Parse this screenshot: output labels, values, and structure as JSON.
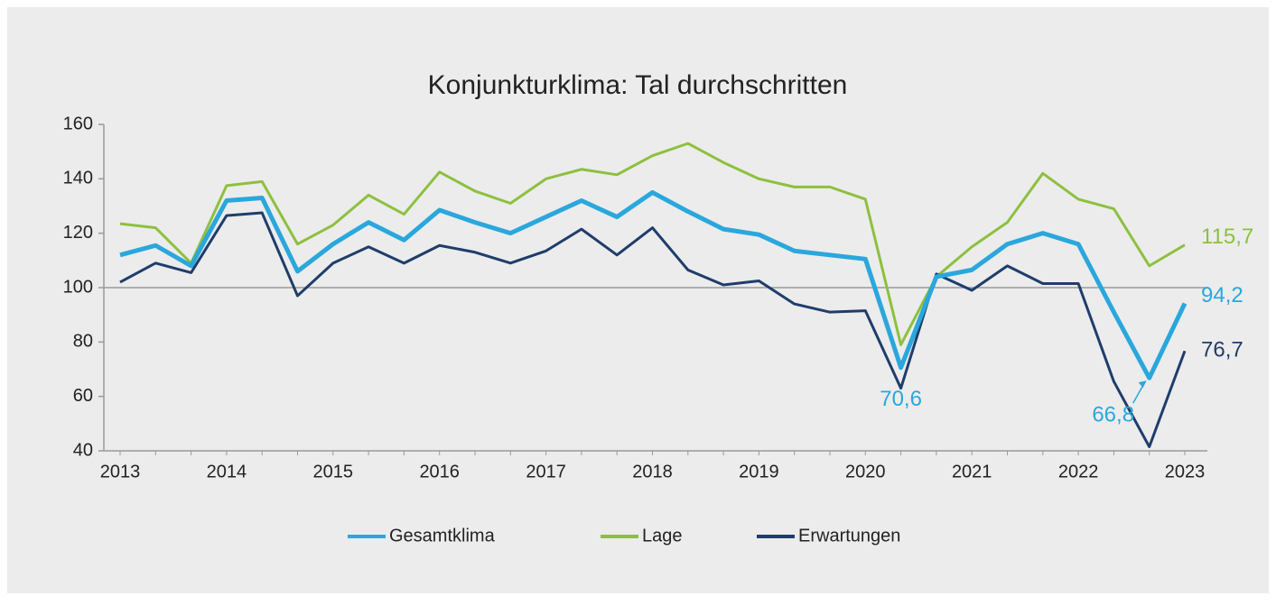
{
  "chart_data": {
    "type": "line",
    "title": "Konjunkturklima: Tal durchschritten",
    "categories": [
      "2013",
      null,
      null,
      "2014",
      null,
      null,
      "2015",
      null,
      null,
      "2016",
      null,
      null,
      "2017",
      null,
      null,
      "2018",
      null,
      null,
      "2019",
      null,
      null,
      "2020",
      null,
      null,
      "2021",
      null,
      null,
      "2022",
      null,
      null,
      "2023"
    ],
    "series": [
      {
        "name": "Gesamtklima",
        "color": "#2aa7dc",
        "values": [
          112,
          115.5,
          108,
          132,
          133,
          106,
          116,
          124,
          117.5,
          128.5,
          124,
          120,
          126,
          132,
          126,
          135,
          128,
          121.5,
          119.5,
          113.5,
          112,
          110.5,
          70.6,
          104,
          106.5,
          116,
          120,
          116,
          91,
          66.8,
          94.2
        ],
        "value_labels": [
          null,
          null,
          null,
          null,
          null,
          null,
          null,
          null,
          null,
          null,
          null,
          null,
          null,
          null,
          null,
          null,
          null,
          null,
          null,
          null,
          null,
          null,
          "70,6",
          null,
          null,
          null,
          null,
          null,
          null,
          "66,8",
          "94,2"
        ]
      },
      {
        "name": "Lage",
        "color": "#8dc03f",
        "values": [
          123.5,
          122,
          109,
          137.5,
          139,
          116,
          123,
          134,
          127,
          142.5,
          135.5,
          131,
          140,
          143.5,
          141.5,
          148.5,
          153,
          146,
          140,
          137,
          137,
          132.5,
          79,
          104,
          115,
          124,
          142,
          132.5,
          129,
          108,
          115.7
        ],
        "value_labels": [
          null,
          null,
          null,
          null,
          null,
          null,
          null,
          null,
          null,
          null,
          null,
          null,
          null,
          null,
          null,
          null,
          null,
          null,
          null,
          null,
          null,
          null,
          null,
          null,
          null,
          null,
          null,
          null,
          null,
          null,
          "115,7"
        ]
      },
      {
        "name": "Erwartungen",
        "color": "#1f3d6b",
        "values": [
          102,
          109,
          105.5,
          126.5,
          127.5,
          97,
          109,
          115,
          109,
          115.5,
          113,
          109,
          113.5,
          121.5,
          112,
          122,
          106.5,
          101,
          102.5,
          94,
          91,
          91.5,
          63,
          105,
          99,
          108,
          101.5,
          101.5,
          65.5,
          41.5,
          76.7
        ],
        "value_labels": [
          null,
          null,
          null,
          null,
          null,
          null,
          null,
          null,
          null,
          null,
          null,
          null,
          null,
          null,
          null,
          null,
          null,
          null,
          null,
          null,
          null,
          null,
          null,
          null,
          null,
          null,
          null,
          null,
          null,
          null,
          "76,7"
        ]
      }
    ],
    "ylim": [
      40,
      160
    ],
    "yticks": [
      40,
      60,
      80,
      100,
      120,
      140,
      160
    ],
    "hline": 100,
    "grid": false,
    "legend": "bottom"
  }
}
